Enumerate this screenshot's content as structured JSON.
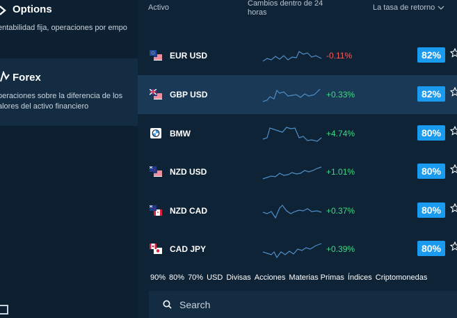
{
  "left_panel": {
    "options": {
      "title": "Options",
      "description": "entabilidad fija, operaciones por empo"
    },
    "forex": {
      "title": "Forex",
      "description": "peraciones sobre la diferencia de los alores del activo financiero"
    }
  },
  "table": {
    "headers": {
      "asset": "Activo",
      "change": "Cambios dentro de 24 horas",
      "rate": "La tasa de retorno"
    },
    "rows": [
      {
        "asset": "EUR USD",
        "change": "-0.11%",
        "direction": "down",
        "return": "82%",
        "selected": false,
        "flag": "eu-us"
      },
      {
        "asset": "GBP USD",
        "change": "+0.33%",
        "direction": "up",
        "return": "82%",
        "selected": true,
        "flag": "gb-us"
      },
      {
        "asset": "BMW",
        "change": "+4.74%",
        "direction": "up",
        "return": "80%",
        "selected": false,
        "flag": "bmw"
      },
      {
        "asset": "NZD USD",
        "change": "+1.01%",
        "direction": "up",
        "return": "80%",
        "selected": false,
        "flag": "nz-us"
      },
      {
        "asset": "NZD CAD",
        "change": "+0.37%",
        "direction": "up",
        "return": "80%",
        "selected": false,
        "flag": "nz-ca"
      },
      {
        "asset": "CAD JPY",
        "change": "+0.39%",
        "direction": "up",
        "return": "80%",
        "selected": false,
        "flag": "ca-jp"
      }
    ]
  },
  "filters": [
    "90%",
    "80%",
    "70%",
    "USD",
    "Divisas",
    "Acciones",
    "Materias Primas",
    "Índices",
    "Criptomonedas"
  ],
  "search": {
    "placeholder": "Search"
  },
  "colors": {
    "accent": "#1a9bf0",
    "up": "#3ddc84",
    "down": "#ff5b5b",
    "background": "#0f2336"
  }
}
